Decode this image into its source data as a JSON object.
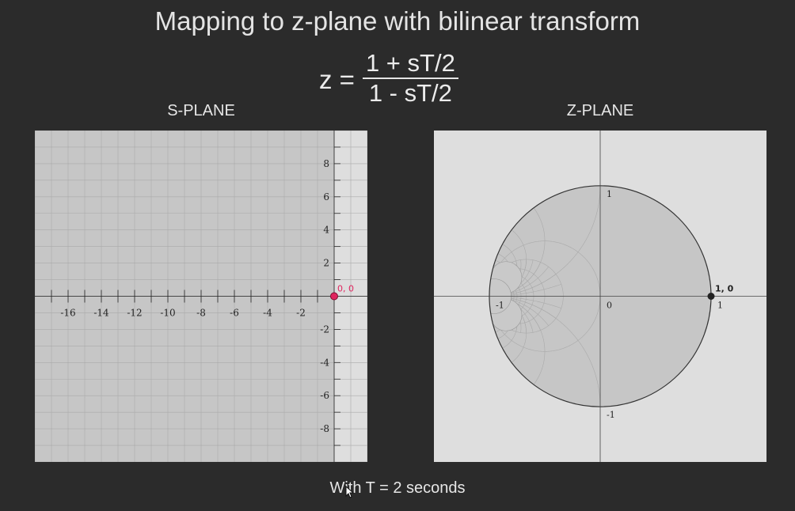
{
  "title": "Mapping to z-plane with bilinear transform",
  "formula": {
    "lhs": "z =",
    "numerator": "1 + sT/2",
    "denominator": "1 - sT/2"
  },
  "s_plane": {
    "label": "S-PLANE",
    "x_ticks": [
      "-16",
      "-14",
      "-12",
      "-10",
      "-8",
      "-6",
      "-4",
      "-2"
    ],
    "y_ticks": [
      "8",
      "6",
      "4",
      "2",
      "-2",
      "-4",
      "-6",
      "-8"
    ],
    "x_range": [
      -18,
      2
    ],
    "y_range": [
      -10,
      10
    ],
    "point": {
      "re": 0,
      "im": 0,
      "label": "0, 0",
      "color": "#e0245e"
    },
    "shaded_region": "Re(s) < 0"
  },
  "z_plane": {
    "label": "Z-PLANE",
    "range": [
      -1.5,
      1.5
    ],
    "axis_labels": {
      "neg_one_x": "-1",
      "origin": "0",
      "one_x": "1",
      "one_y": "1",
      "neg_one_y": "-1"
    },
    "point": {
      "re": 1,
      "im": 0,
      "label": "1, 0",
      "color": "#222222"
    },
    "unit_circle": true
  },
  "footer": "With T = 2 seconds",
  "colors": {
    "background": "#2b2b2b",
    "panel": "#dedede",
    "shade": "#c6c6c6",
    "grid": "#aaaaaa"
  },
  "icons": {
    "cursor": "pointer-cursor-icon"
  }
}
